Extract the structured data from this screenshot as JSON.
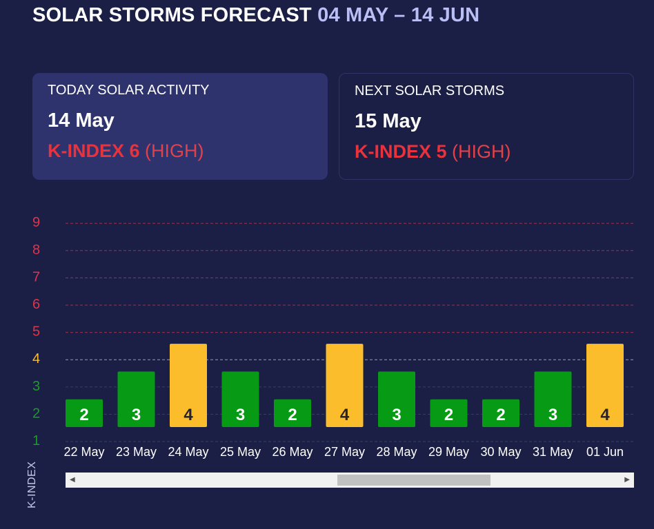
{
  "header": {
    "title": "SOLAR STORMS FORECAST",
    "range": "04 MAY – 14 JUN"
  },
  "today": {
    "label": "TODAY SOLAR ACTIVITY",
    "date": "14 May",
    "kindex": "K-INDEX 6",
    "level": "(HIGH)"
  },
  "next": {
    "label": "NEXT SOLAR STORMS",
    "date": "15 May",
    "kindex": "K-INDEX 5",
    "level": "(HIGH)"
  },
  "colors": {
    "low": "#079a14",
    "medium": "#fbbd2c",
    "high": "#e0344a"
  },
  "chart_data": {
    "type": "bar",
    "ylabel": "K-INDEX",
    "ylim": [
      1,
      9
    ],
    "yticks": [
      "1",
      "2",
      "3",
      "4",
      "5",
      "6",
      "7",
      "8",
      "9"
    ],
    "categories": [
      "22 May",
      "23 May",
      "24 May",
      "25 May",
      "26 May",
      "27 May",
      "28 May",
      "29 May",
      "30 May",
      "31 May",
      "01 Jun"
    ],
    "values": [
      2,
      3,
      4,
      3,
      2,
      4,
      3,
      2,
      2,
      3,
      4
    ],
    "grid": true
  },
  "scrollbar": {
    "left": "◀",
    "right": "▶"
  }
}
